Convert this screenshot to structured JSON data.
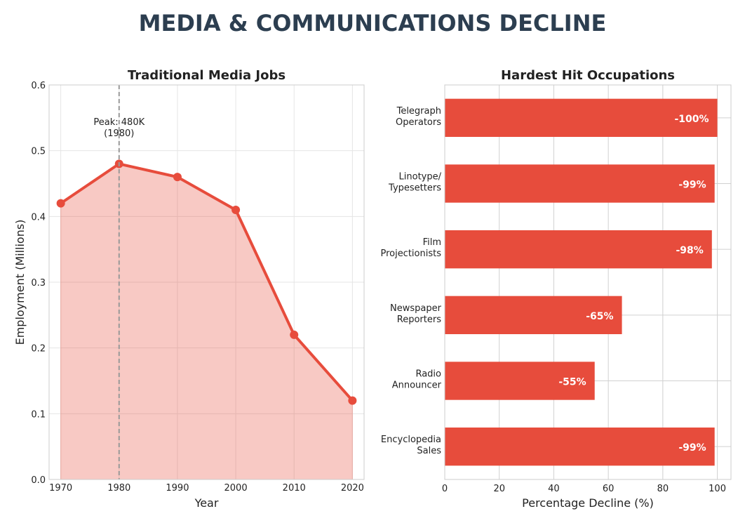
{
  "suptitle": "MEDIA & COMMUNICATIONS DECLINE",
  "colors": {
    "accent": "#e74c3c",
    "title": "#2c3e50",
    "grid": "#e5e5e5",
    "annotation_line": "#999999"
  },
  "chart_data": [
    {
      "type": "area",
      "title": "Traditional Media Jobs",
      "xlabel": "Year",
      "ylabel": "Employment (Millions)",
      "x": [
        1970,
        1980,
        1990,
        2000,
        2010,
        2020
      ],
      "y": [
        0.42,
        0.48,
        0.46,
        0.41,
        0.22,
        0.12
      ],
      "xlim": [
        1968,
        2022
      ],
      "ylim": [
        0,
        0.6
      ],
      "xticks": [
        1970,
        1980,
        1990,
        2000,
        2010,
        2020
      ],
      "yticks": [
        0.0,
        0.1,
        0.2,
        0.3,
        0.4,
        0.5,
        0.6
      ],
      "grid": true,
      "markers": true,
      "annotation": {
        "x": 1980,
        "line1": "Peak: 480K",
        "line2": "(1980)",
        "vline": "dashed"
      }
    },
    {
      "type": "bar",
      "orientation": "horizontal",
      "title": "Hardest Hit Occupations",
      "xlabel": "Percentage Decline (%)",
      "categories": [
        [
          "Telegraph",
          "Operators"
        ],
        [
          "Linotype/",
          "Typesetters"
        ],
        [
          "Film",
          "Projectionists"
        ],
        [
          "Newspaper",
          "Reporters"
        ],
        [
          "Radio",
          "Announcer"
        ],
        [
          "Encyclopedia",
          "Sales"
        ]
      ],
      "values": [
        100,
        99,
        98,
        65,
        55,
        99
      ],
      "data_labels": [
        "-100%",
        "-99%",
        "-98%",
        "-65%",
        "-55%",
        "-99%"
      ],
      "xlim": [
        0,
        105
      ],
      "xticks": [
        0,
        20,
        40,
        60,
        80,
        100
      ],
      "grid": true
    }
  ]
}
